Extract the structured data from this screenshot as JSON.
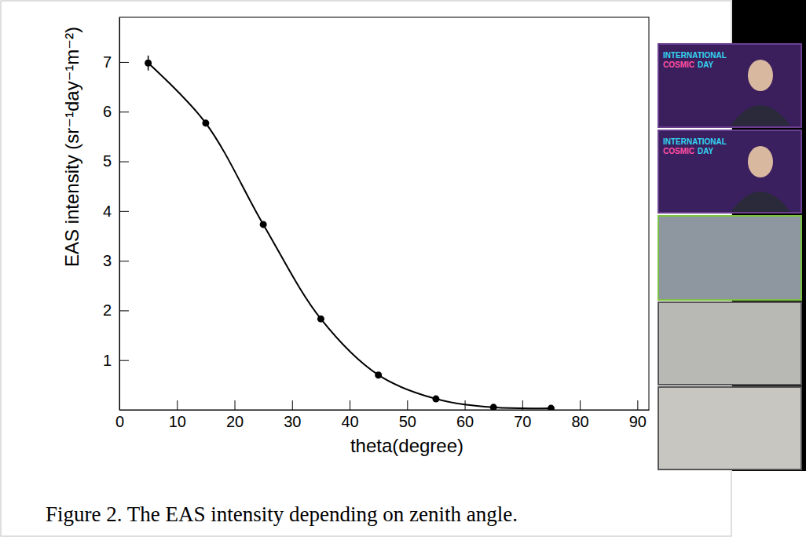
{
  "chart_data": {
    "type": "line",
    "title": "Figure 2. The EAS intensity depending on zenith angle.",
    "x_label": "theta(degree)",
    "y_label": "EAS intensity (sr⁻¹day⁻¹m⁻²)",
    "x": [
      5,
      15,
      25,
      35,
      45,
      55,
      65,
      75
    ],
    "series": [
      {
        "values": [
          6.98,
          5.77,
          3.73,
          1.83,
          0.7,
          0.22,
          0.05,
          0.03
        ],
        "errors": [
          0.15,
          0.06,
          0.04,
          0.03,
          0.02,
          0.01,
          0.01,
          0.01
        ],
        "color": "#000000",
        "marker": "circle",
        "line_style": "solid"
      }
    ],
    "xlim": [
      0,
      92
    ],
    "ylim": [
      0,
      7.9
    ],
    "xticks": [
      0,
      10,
      20,
      30,
      40,
      50,
      60,
      70,
      80,
      90
    ],
    "yticks": [
      1,
      2,
      3,
      4,
      5,
      6,
      7
    ],
    "grid": false,
    "annotations": [
      "INTERNATIONAL COSMIC DAY",
      "INTERNATIONAL COSMIC DAY"
    ]
  }
}
